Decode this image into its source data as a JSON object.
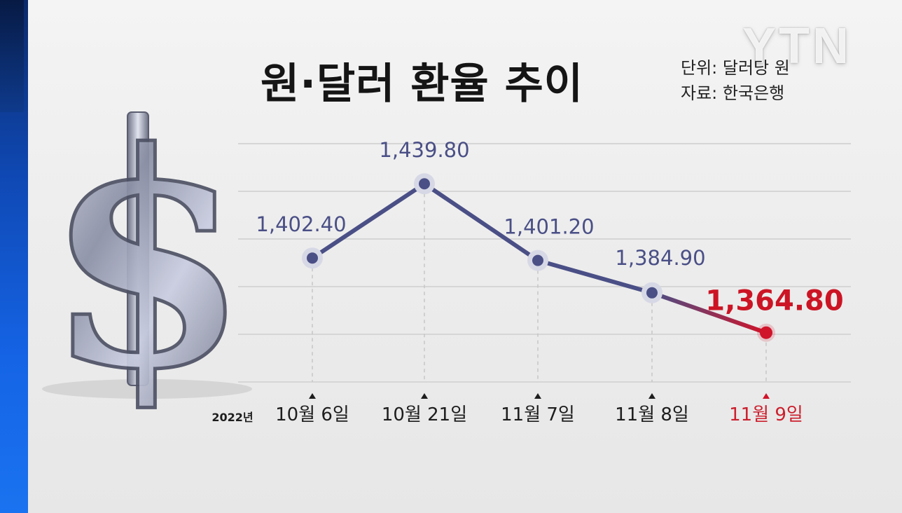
{
  "header": {
    "title": "원·달러 환율 추이",
    "unit": "단위: 달러당 원",
    "source": "자료: 한국은행"
  },
  "logo": {
    "text": "YTN"
  },
  "chart_data": {
    "type": "line",
    "title": "원·달러 환율 추이",
    "year_label": "2022년",
    "categories": [
      "10월 6일",
      "10월 21일",
      "11월 7일",
      "11월 8일",
      "11월 9일"
    ],
    "values": [
      1402.4,
      1439.8,
      1401.2,
      1384.9,
      1364.8
    ],
    "value_labels": [
      "1,402.40",
      "1,439.80",
      "1,401.20",
      "1,384.90",
      "1,364.80"
    ],
    "highlight_index": 4,
    "grid": true,
    "colors": {
      "line": "#4a4f86",
      "highlight": "#d0142a",
      "marker_halo": "#d7d8e6"
    }
  },
  "icons": {
    "decoration": "dollar-sign-icon"
  }
}
